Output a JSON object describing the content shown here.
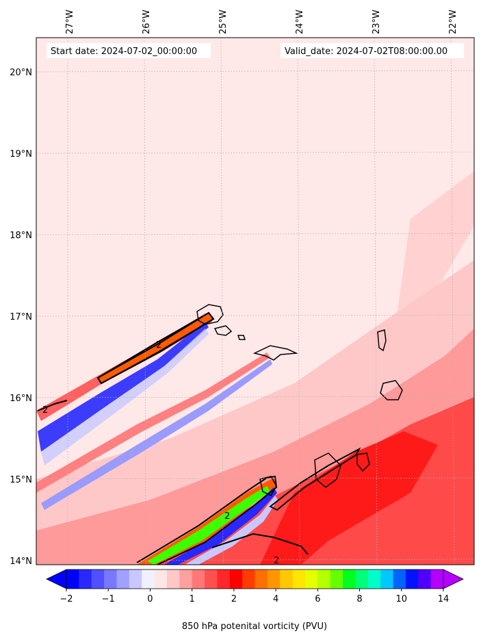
{
  "map": {
    "start_date": "Start date: 2024-07-02_00:00:00",
    "valid_date": "Valid_date: 2024-07-02T08:00:00.00",
    "lon_labels": [
      "27°W",
      "26°W",
      "25°W",
      "24°W",
      "23°W",
      "22°W"
    ],
    "lat_labels": [
      "20°N",
      "19°N",
      "18°N",
      "17°N",
      "16°N",
      "15°N",
      "14°N"
    ],
    "contour_label": "2"
  },
  "colorbar": {
    "tick_labels": [
      "−2",
      "−1",
      "0",
      "1",
      "2",
      "4",
      "6",
      "8",
      "10",
      "14"
    ],
    "label": "850 hPa potenital vorticity (PVU)",
    "colors": [
      "#0000ff",
      "#2828ff",
      "#5050ff",
      "#7878ff",
      "#a0a0ff",
      "#c8c8ff",
      "#f0f0ff",
      "#ffe6e6",
      "#ffc8c8",
      "#ffa0a0",
      "#ff7878",
      "#ff5050",
      "#ff2828",
      "#ff0000",
      "#ff3c00",
      "#ff6e00",
      "#ff9600",
      "#ffc800",
      "#ffe600",
      "#e6ff00",
      "#b4ff00",
      "#64ff00",
      "#00ff1e",
      "#00ff78",
      "#00ffc8",
      "#00c8ff",
      "#0064ff",
      "#0014ff",
      "#5000ff",
      "#b400ff"
    ]
  },
  "colors": {
    "background_field": "#ffe8e8",
    "light_red": "#ffc8c8",
    "mid_red": "#ff8c8c",
    "strong_red": "#ff2020",
    "blue_band": "#3c3cff",
    "light_blue": "#c8c8ff",
    "contour": "#000000"
  }
}
